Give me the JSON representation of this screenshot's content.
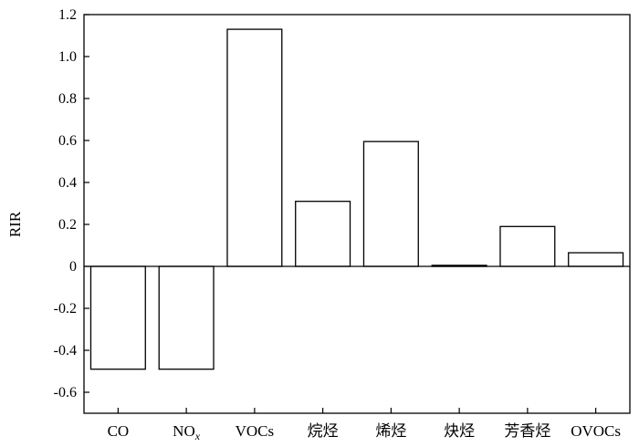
{
  "chart_data": {
    "type": "bar",
    "title": "",
    "xlabel": "",
    "ylabel": "RIR",
    "categories": [
      "CO",
      "NOx",
      "VOCs",
      "烷烃",
      "烯烃",
      "炔烃",
      "芳香烃",
      "OVOCs"
    ],
    "values": [
      -0.49,
      -0.49,
      1.13,
      0.31,
      0.595,
      0.005,
      0.19,
      0.065
    ],
    "ylim": [
      -0.7,
      1.2
    ],
    "yticks": [
      1.2,
      1.0,
      0.8,
      0.6,
      0.4,
      0.2,
      0,
      -0.2,
      -0.4,
      -0.6
    ],
    "ytick_labels": [
      "1.2",
      "1.0",
      "0.8",
      "0.6",
      "0.4",
      "0.2",
      "0",
      "-0.2",
      "-0.4",
      "-0.6"
    ],
    "grid": false,
    "legend": "none",
    "zero_line": true,
    "bar_fill": "#ffffff",
    "bar_stroke": "#000000"
  }
}
